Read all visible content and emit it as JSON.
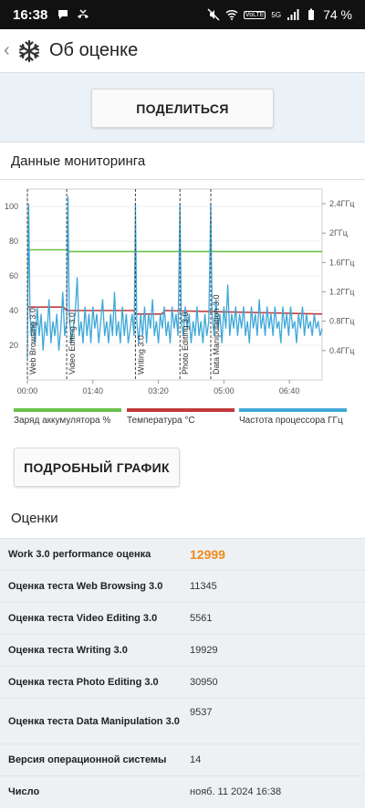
{
  "status": {
    "time": "16:38",
    "battery": "74 %",
    "network": "5G",
    "volte": "VoLTE"
  },
  "appbar": {
    "title": "Об оценке"
  },
  "share_label": "ПОДЕЛИТЬСЯ",
  "monitoring": {
    "title": "Данные мониторинга",
    "detail_label": "ПОДРОБНЫЙ ГРАФИК",
    "legend": [
      {
        "label": "Заряд аккумулятора %",
        "color": "#6ac14a"
      },
      {
        "label": "Температура °C",
        "color": "#c43a3a"
      },
      {
        "label": "Частота процессора ГГц",
        "color": "#3fa8d8"
      }
    ]
  },
  "chart_data": {
    "type": "line",
    "title": "",
    "x_ticks": [
      "00:00",
      "01:40",
      "03:20",
      "05:00",
      "06:40"
    ],
    "y_left_ticks": [
      100,
      80,
      60,
      40,
      20
    ],
    "y_right_ticks": [
      "2.4ГГц",
      "2ГГц",
      "1.6ГГц",
      "1.2ГГц",
      "0.8ГГц",
      "0.4ГГц"
    ],
    "ylim": [
      0,
      110
    ],
    "y_right_lim": [
      0,
      2.6
    ],
    "xlim_seconds": [
      0,
      450
    ],
    "phases": [
      {
        "label": "Web Browsing 3.0",
        "t": 0
      },
      {
        "label": "Video Editing 3.0",
        "t": 60
      },
      {
        "label": "Writing 3.0",
        "t": 165
      },
      {
        "label": "Photo Editing 3.0",
        "t": 233
      },
      {
        "label": "Data Manipulation 3.0",
        "t": 280
      }
    ],
    "series": [
      {
        "name": "Заряд аккумулятора %",
        "color": "#6ac14a",
        "points": [
          [
            0,
            75
          ],
          [
            62,
            75
          ],
          [
            63,
            74
          ],
          [
            450,
            74
          ]
        ]
      },
      {
        "name": "Температура °C",
        "color": "#c43a3a",
        "points": [
          [
            0,
            42
          ],
          [
            55,
            42
          ],
          [
            60,
            40
          ],
          [
            162,
            40
          ],
          [
            166,
            38
          ],
          [
            205,
            38
          ],
          [
            210,
            40
          ],
          [
            450,
            38
          ]
        ]
      },
      {
        "name": "Частота процессора ГГц",
        "color": "#3fa8d8",
        "points": [
          [
            0,
            0.3
          ],
          [
            2,
            2.4
          ],
          [
            4,
            0.9
          ],
          [
            6,
            0.6
          ],
          [
            9,
            0.8
          ],
          [
            12,
            0.5
          ],
          [
            15,
            1.0
          ],
          [
            18,
            0.6
          ],
          [
            21,
            0.9
          ],
          [
            24,
            0.4
          ],
          [
            27,
            0.8
          ],
          [
            30,
            0.6
          ],
          [
            33,
            1.1
          ],
          [
            36,
            0.5
          ],
          [
            39,
            0.8
          ],
          [
            42,
            0.6
          ],
          [
            45,
            0.9
          ],
          [
            48,
            0.4
          ],
          [
            51,
            0.7
          ],
          [
            54,
            1.2
          ],
          [
            57,
            0.6
          ],
          [
            60,
            0.8
          ],
          [
            62,
            2.5
          ],
          [
            64,
            0.9
          ],
          [
            67,
            0.5
          ],
          [
            70,
            0.7
          ],
          [
            73,
            0.9
          ],
          [
            76,
            1.4
          ],
          [
            79,
            0.6
          ],
          [
            82,
            0.8
          ],
          [
            85,
            0.5
          ],
          [
            88,
            1.0
          ],
          [
            91,
            0.6
          ],
          [
            94,
            0.9
          ],
          [
            97,
            0.5
          ],
          [
            100,
            1.0
          ],
          [
            103,
            0.7
          ],
          [
            106,
            0.9
          ],
          [
            109,
            0.5
          ],
          [
            112,
            0.8
          ],
          [
            115,
            1.1
          ],
          [
            118,
            0.6
          ],
          [
            121,
            0.8
          ],
          [
            124,
            0.5
          ],
          [
            127,
            0.9
          ],
          [
            130,
            0.6
          ],
          [
            133,
            1.2
          ],
          [
            136,
            0.6
          ],
          [
            139,
            0.8
          ],
          [
            142,
            0.5
          ],
          [
            145,
            1.0
          ],
          [
            148,
            0.6
          ],
          [
            151,
            0.9
          ],
          [
            154,
            0.5
          ],
          [
            157,
            0.7
          ],
          [
            160,
            0.9
          ],
          [
            163,
            0.6
          ],
          [
            165,
            2.4
          ],
          [
            167,
            0.8
          ],
          [
            170,
            0.5
          ],
          [
            173,
            0.9
          ],
          [
            176,
            0.6
          ],
          [
            179,
            1.0
          ],
          [
            182,
            0.5
          ],
          [
            185,
            0.9
          ],
          [
            188,
            0.7
          ],
          [
            191,
            1.1
          ],
          [
            194,
            0.6
          ],
          [
            197,
            0.8
          ],
          [
            200,
            0.5
          ],
          [
            203,
            0.9
          ],
          [
            206,
            0.7
          ],
          [
            209,
            1.0
          ],
          [
            212,
            0.6
          ],
          [
            215,
            0.8
          ],
          [
            218,
            0.5
          ],
          [
            221,
            1.0
          ],
          [
            224,
            0.7
          ],
          [
            227,
            0.9
          ],
          [
            230,
            0.6
          ],
          [
            233,
            2.4
          ],
          [
            235,
            0.8
          ],
          [
            238,
            0.6
          ],
          [
            241,
            1.0
          ],
          [
            244,
            0.7
          ],
          [
            247,
            0.9
          ],
          [
            250,
            0.5
          ],
          [
            253,
            0.8
          ],
          [
            256,
            0.6
          ],
          [
            259,
            1.0
          ],
          [
            262,
            0.6
          ],
          [
            265,
            0.8
          ],
          [
            268,
            0.5
          ],
          [
            271,
            0.9
          ],
          [
            274,
            0.6
          ],
          [
            277,
            0.8
          ],
          [
            280,
            2.4
          ],
          [
            282,
            0.9
          ],
          [
            285,
            0.6
          ],
          [
            288,
            1.1
          ],
          [
            291,
            0.7
          ],
          [
            294,
            0.9
          ],
          [
            297,
            0.5
          ],
          [
            300,
            1.0
          ],
          [
            303,
            0.7
          ],
          [
            306,
            1.3
          ],
          [
            309,
            0.6
          ],
          [
            312,
            0.9
          ],
          [
            315,
            0.7
          ],
          [
            318,
            1.0
          ],
          [
            321,
            0.6
          ],
          [
            324,
            0.9
          ],
          [
            327,
            0.7
          ],
          [
            330,
            1.0
          ],
          [
            333,
            0.6
          ],
          [
            336,
            0.8
          ],
          [
            339,
            0.5
          ],
          [
            342,
            1.0
          ],
          [
            345,
            0.7
          ],
          [
            348,
            0.9
          ],
          [
            351,
            0.6
          ],
          [
            354,
            1.1
          ],
          [
            357,
            0.7
          ],
          [
            360,
            0.9
          ],
          [
            363,
            0.6
          ],
          [
            366,
            1.0
          ],
          [
            369,
            0.7
          ],
          [
            372,
            0.9
          ],
          [
            375,
            0.6
          ],
          [
            378,
            1.0
          ],
          [
            381,
            0.7
          ],
          [
            384,
            0.8
          ],
          [
            387,
            0.5
          ],
          [
            390,
            1.0
          ],
          [
            393,
            0.7
          ],
          [
            396,
            0.9
          ],
          [
            399,
            0.6
          ],
          [
            402,
            1.0
          ],
          [
            405,
            0.7
          ],
          [
            408,
            0.8
          ],
          [
            411,
            0.5
          ],
          [
            414,
            0.9
          ],
          [
            417,
            0.7
          ],
          [
            420,
            1.0
          ],
          [
            423,
            0.6
          ],
          [
            426,
            0.9
          ],
          [
            429,
            0.7
          ],
          [
            432,
            0.8
          ],
          [
            435,
            0.6
          ],
          [
            438,
            0.9
          ],
          [
            441,
            0.7
          ],
          [
            444,
            0.8
          ],
          [
            447,
            0.6
          ],
          [
            450,
            0.7
          ]
        ]
      }
    ]
  },
  "scores": {
    "title": "Оценки",
    "rows": [
      {
        "label": "Work 3.0 performance оценка",
        "value": "12999"
      },
      {
        "label": "Оценка теста Web Browsing 3.0",
        "value": "11345"
      },
      {
        "label": "Оценка теста Video Editing 3.0",
        "value": "5561"
      },
      {
        "label": "Оценка теста Writing 3.0",
        "value": "19929"
      },
      {
        "label": "Оценка теста Photo Editing 3.0",
        "value": "30950"
      },
      {
        "label": "Оценка теста Data Manipulation 3.0",
        "value": "9537"
      },
      {
        "label": "Версия операционной системы",
        "value": "14"
      },
      {
        "label": "Число",
        "value": "нояб. 11 2024 16:38"
      }
    ]
  }
}
